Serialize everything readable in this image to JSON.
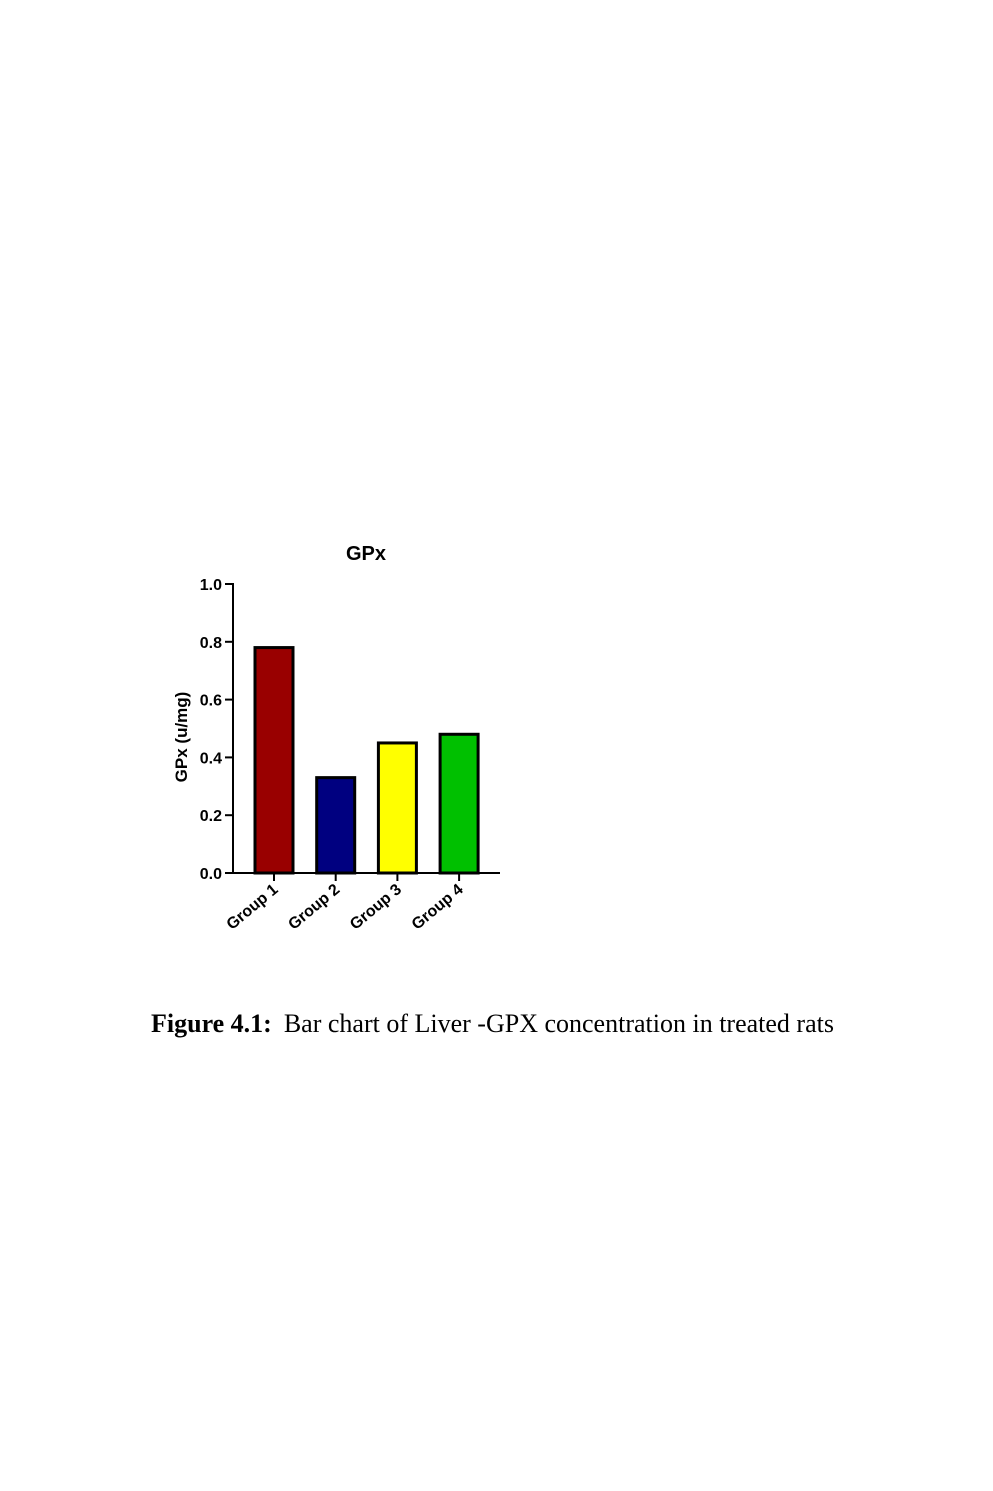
{
  "chart_data": {
    "type": "bar",
    "title": "GPx",
    "y_label": "GPx (u/mg)",
    "categories": [
      "Group 1",
      "Group 2",
      "Group 3",
      "Group 4"
    ],
    "values": [
      0.78,
      0.33,
      0.45,
      0.48
    ],
    "colors": [
      "#990000",
      "#000080",
      "#ffff00",
      "#00c000"
    ],
    "ylim": [
      0,
      1
    ],
    "yticks": [
      {
        "value": 0,
        "label": "0.0"
      },
      0.2,
      0.4,
      0.6,
      0.8,
      {
        "value": 1,
        "label": "1.0"
      }
    ],
    "grid": false
  },
  "caption": {
    "label": "Figure 4.1:",
    "text": "Bar chart of Liver -GPX concentration in treated rats"
  }
}
